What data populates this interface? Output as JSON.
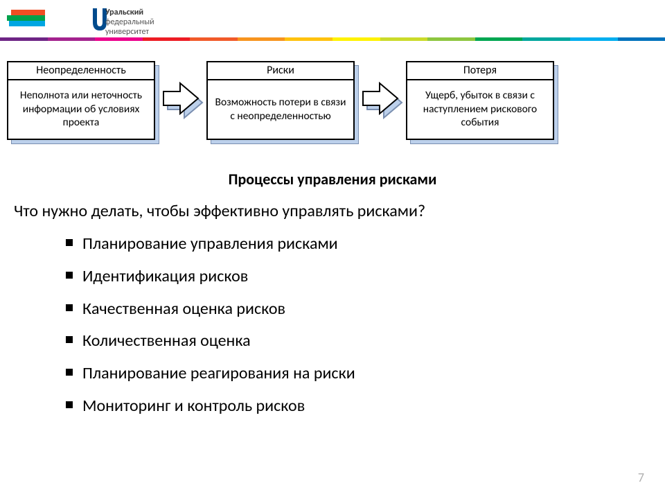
{
  "logo": {
    "line1": "Уральский",
    "line2": "федеральный",
    "line3": "университет"
  },
  "stripe_colors": [
    "#f04e23",
    "#00a14b",
    "#00a6e2"
  ],
  "rainbow_colors": [
    "#6e2585",
    "#a3238e",
    "#ec008c",
    "#ed1c24",
    "#f15a29",
    "#f7941e",
    "#ffc20e",
    "#fff200",
    "#cbdb2a",
    "#8dc63f",
    "#00a651",
    "#00a79d",
    "#00aeef",
    "#0072bc"
  ],
  "flow": [
    {
      "title": "Неопределенность",
      "body": "Неполнота или неточность информации об условиях проекта"
    },
    {
      "title": "Риски",
      "body": "Возможность потери в связи с неопределенностью"
    },
    {
      "title": "Потеря",
      "body": "Ущерб, убыток в связи с наступлением рискового события"
    }
  ],
  "arrow_fill": "#ffffff",
  "arrow_shadow": "#bcd0eb",
  "subtitle": "Процессы управления рисками",
  "question": "Что нужно делать, чтобы эффективно управлять рисками?",
  "processes": [
    "Планирование управления рисками",
    "Идентификация рисков",
    "Качественная оценка рисков",
    "Количественная оценка",
    "Планирование реагирования на риски",
    "Мониторинг и контроль рисков"
  ],
  "page_number": "7"
}
